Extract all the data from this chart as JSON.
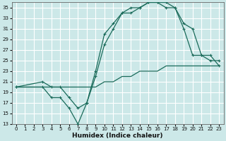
{
  "title": "",
  "xlabel": "Humidex (Indice chaleur)",
  "bg_color": "#cce8e8",
  "line_color": "#1a6b5a",
  "grid_color": "#ffffff",
  "xlim": [
    -0.5,
    23.5
  ],
  "ylim": [
    13,
    36
  ],
  "yticks": [
    13,
    15,
    17,
    19,
    21,
    23,
    25,
    27,
    29,
    31,
    33,
    35
  ],
  "xticks": [
    0,
    1,
    2,
    3,
    4,
    5,
    6,
    7,
    8,
    9,
    10,
    11,
    12,
    13,
    14,
    15,
    16,
    17,
    18,
    19,
    20,
    21,
    22,
    23
  ],
  "line1_x": [
    0,
    1,
    2,
    3,
    4,
    5,
    6,
    7,
    8,
    9,
    10,
    11,
    12,
    13,
    14,
    15,
    16,
    17,
    18,
    19,
    20,
    21,
    22,
    23
  ],
  "line1_y": [
    20,
    20,
    20,
    20,
    20,
    20,
    20,
    20,
    20,
    20,
    21,
    21,
    22,
    22,
    23,
    23,
    23,
    24,
    24,
    24,
    24,
    24,
    24,
    24
  ],
  "line2_x": [
    0,
    3,
    4,
    5,
    6,
    7,
    8,
    9,
    10,
    11,
    12,
    13,
    14,
    15,
    16,
    17,
    18,
    19,
    20,
    21,
    22,
    23
  ],
  "line2_y": [
    20,
    20,
    18,
    18,
    16,
    13,
    17,
    22,
    28,
    31,
    34,
    34,
    35,
    36,
    36,
    35,
    35,
    31,
    26,
    26,
    25,
    25
  ],
  "line3_x": [
    0,
    3,
    4,
    5,
    6,
    7,
    8,
    9,
    10,
    11,
    12,
    13,
    14,
    15,
    16,
    17,
    18,
    19,
    20,
    21,
    22,
    23
  ],
  "line3_y": [
    20,
    21,
    20,
    20,
    18,
    16,
    17,
    23,
    30,
    32,
    34,
    35,
    35,
    36,
    36,
    36,
    35,
    32,
    31,
    26,
    26,
    24
  ],
  "tick_fontsize": 5.0,
  "xlabel_fontsize": 6.5
}
